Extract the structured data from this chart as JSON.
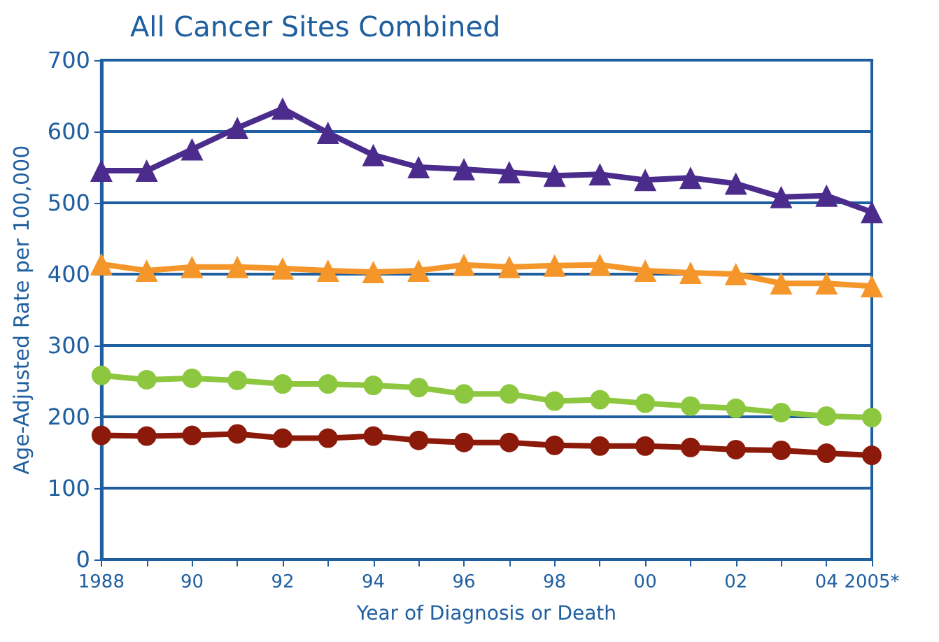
{
  "chart_data": {
    "type": "line",
    "title": "All Cancer Sites Combined",
    "xlabel": "Year of Diagnosis or Death",
    "ylabel": "Age-Adjusted Rate per 100,000",
    "categories": [
      "1988",
      null,
      "90",
      null,
      "92",
      null,
      "94",
      null,
      "96",
      null,
      "98",
      null,
      "00",
      null,
      "02",
      null,
      "04",
      "2005*"
    ],
    "series": [
      {
        "color": "#4b2c8c",
        "marker": "triangle",
        "values": [
          545,
          545,
          575,
          605,
          632,
          598,
          567,
          550,
          547,
          543,
          538,
          540,
          532,
          535,
          527,
          508,
          510,
          487
        ]
      },
      {
        "color": "#f4962a",
        "marker": "triangle",
        "values": [
          414,
          405,
          410,
          410,
          408,
          405,
          403,
          405,
          413,
          410,
          412,
          413,
          405,
          402,
          400,
          387,
          387,
          383
        ]
      },
      {
        "color": "#8dc63f",
        "marker": "circle",
        "values": [
          258,
          252,
          254,
          251,
          246,
          246,
          244,
          241,
          232,
          232,
          222,
          224,
          219,
          215,
          212,
          206,
          201,
          199
        ]
      },
      {
        "color": "#8b1a0a",
        "marker": "circle",
        "values": [
          174,
          173,
          174,
          176,
          170,
          170,
          173,
          167,
          164,
          164,
          160,
          159,
          159,
          157,
          154,
          153,
          149,
          146
        ]
      }
    ],
    "ylim": [
      0,
      700
    ],
    "yticks": [
      0,
      100,
      200,
      300,
      400,
      500,
      600,
      700
    ],
    "grid": "y",
    "line_style": "solid"
  }
}
